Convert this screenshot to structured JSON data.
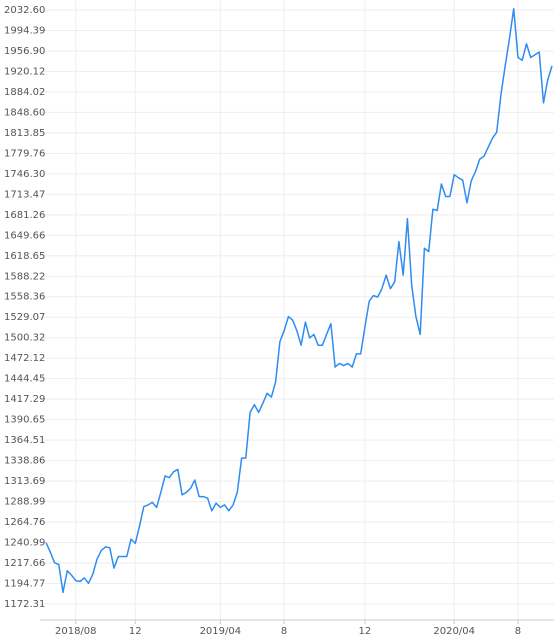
{
  "chart_data": {
    "type": "line",
    "color": "#2f8cf0",
    "log_scale": true,
    "grid": true,
    "categories": [
      null,
      null,
      null,
      null,
      null,
      null,
      null,
      "2018/08",
      null,
      null,
      null,
      null,
      null,
      null,
      null,
      null,
      null,
      null,
      null,
      null,
      null,
      "12",
      null,
      null,
      null,
      null,
      null,
      null,
      null,
      null,
      null,
      null,
      null,
      null,
      null,
      null,
      null,
      null,
      null,
      null,
      null,
      "2019/04",
      null,
      null,
      null,
      null,
      null,
      null,
      null,
      null,
      null,
      null,
      null,
      null,
      null,
      null,
      "8",
      null,
      null,
      null,
      null,
      null,
      null,
      null,
      null,
      null,
      null,
      null,
      null,
      null,
      null,
      null,
      null,
      null,
      null,
      "12",
      null,
      null,
      null,
      null,
      null,
      null,
      null,
      null,
      null,
      null,
      null,
      null,
      null,
      null,
      null,
      null,
      null,
      null,
      null,
      null,
      "2020/04",
      null,
      null,
      null,
      null,
      null,
      null,
      null,
      null,
      null,
      null,
      null,
      null,
      null,
      null,
      "8",
      null,
      null,
      null,
      null,
      null,
      null,
      null,
      null
    ],
    "values": [
      1241,
      1230,
      1218,
      1216,
      1185,
      1209,
      1204,
      1198,
      1197,
      1201,
      1195,
      1205,
      1222,
      1232,
      1236,
      1235,
      1212,
      1225,
      1225,
      1225,
      1245,
      1240,
      1260,
      1283,
      1285,
      1288,
      1282,
      1300,
      1320,
      1318,
      1325,
      1328,
      1297,
      1300,
      1305,
      1315,
      1295,
      1295,
      1293,
      1278,
      1287,
      1282,
      1285,
      1278,
      1285,
      1300,
      1342,
      1342,
      1400,
      1410,
      1400,
      1412,
      1425,
      1420,
      1440,
      1495,
      1510,
      1530,
      1525,
      1510,
      1490,
      1522,
      1500,
      1505,
      1490,
      1490,
      1505,
      1520,
      1460,
      1465,
      1462,
      1465,
      1460,
      1478,
      1478,
      1515,
      1552,
      1560,
      1558,
      1570,
      1590,
      1570,
      1580,
      1640,
      1590,
      1675,
      1575,
      1530,
      1505,
      1630,
      1625,
      1690,
      1688,
      1730,
      1710,
      1710,
      1745,
      1740,
      1736,
      1700,
      1735,
      1750,
      1770,
      1775,
      1790,
      1805,
      1815,
      1880,
      1930,
      1980,
      2035,
      1945,
      1940,
      1970,
      1945,
      1950,
      1955,
      1865,
      1905,
      1930
    ],
    "ylim": [
      1155.05,
      2051.5
    ],
    "yticks": [
      1172.31,
      1194.77,
      1217.66,
      1240.99,
      1264.76,
      1288.99,
      1313.69,
      1338.86,
      1364.51,
      1390.65,
      1417.29,
      1444.45,
      1472.12,
      1500.32,
      1529.07,
      1558.36,
      1588.22,
      1618.65,
      1649.66,
      1681.26,
      1713.47,
      {
        "value": 1746.3,
        "label": "1746.30"
      },
      1779.76,
      1813.85,
      {
        "value": 1848.6,
        "label": "1848.60"
      },
      1884.02,
      1920.12,
      {
        "value": 1956.9,
        "label": "1956.90"
      },
      1994.39,
      {
        "value": 2032.6,
        "label": "2032.60"
      }
    ]
  }
}
